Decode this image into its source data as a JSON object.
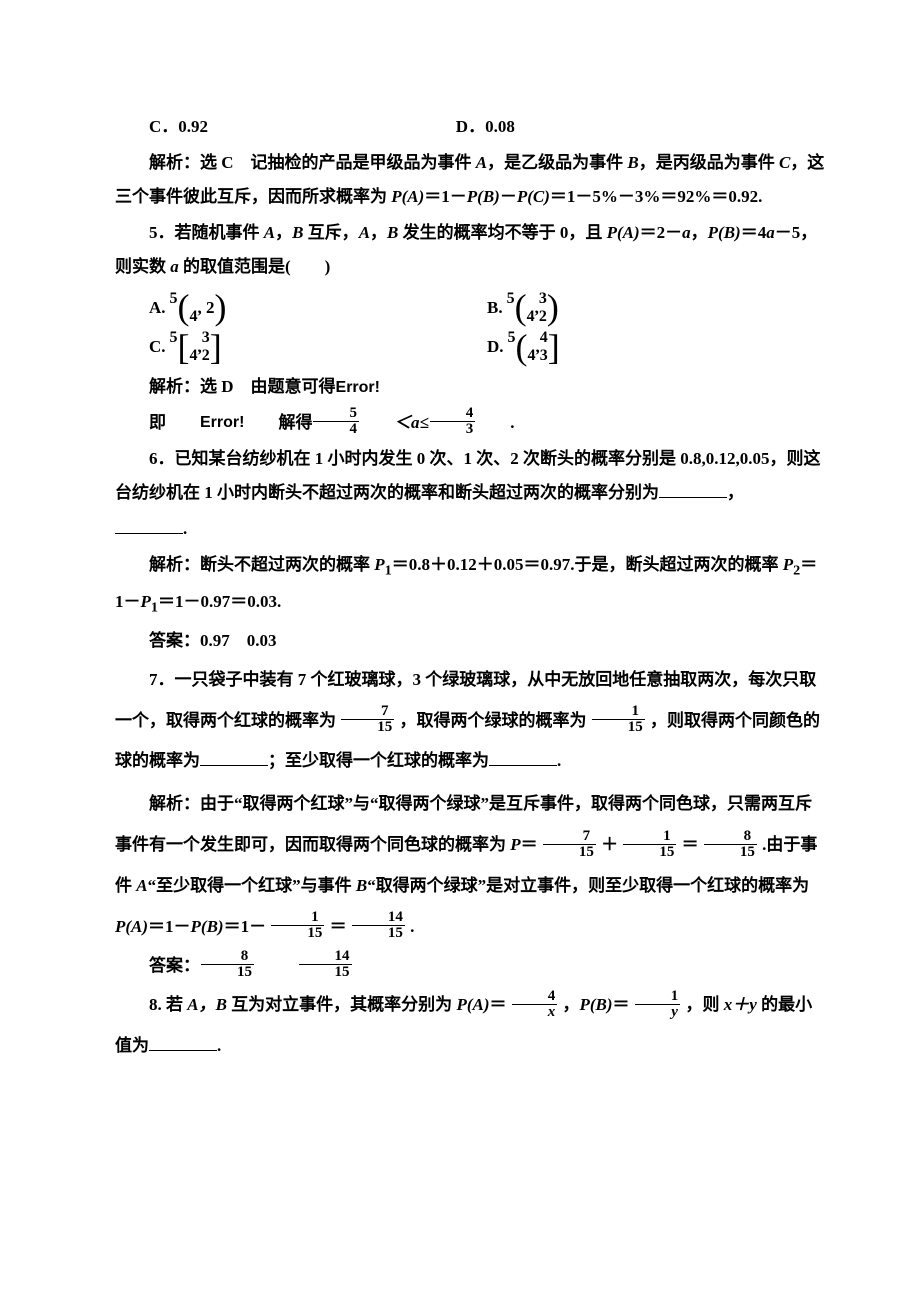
{
  "colors": {
    "text": "#000000",
    "background": "#ffffff"
  },
  "typography": {
    "base_fontsize": 17,
    "line_height": 2.0,
    "font_family": "SimSun"
  },
  "opt_c": "C．0.92",
  "opt_d": "D．0.08",
  "sol4_a": "解析：选 C　记抽检的产品是甲级品为事件 ",
  "sol4_b": "，是乙级品为事件 ",
  "sol4_c": "，是丙级品为事件 ",
  "sol4_d": "，这三个事件彼此互斥，因而所求概率为 ",
  "sol4_e": "＝1－",
  "sol4_f": "－",
  "sol4_g": "＝1－5%－3%＝92%＝0.92.",
  "q5_a": "5．若随机事件 ",
  "q5_b": "，",
  "q5_c": " 互斥，",
  "q5_d": " 发生的概率均不等于 0，且 ",
  "q5_e": "＝2－",
  "q5_f": "＝4",
  "q5_g": "－5，则实数 ",
  "q5_h": " 的取值范围是(　　)",
  "q5opt": {
    "A": {
      "tl": "5",
      "bl": "4",
      "tr": "",
      "br": "",
      "after": ", 2",
      "lbr": "(",
      "rbr": ")"
    },
    "B": {
      "tl": "5",
      "bl": "4",
      "tr": "3",
      "br": "2",
      "after": ", ",
      "lbr": "(",
      "rbr": ")"
    },
    "C": {
      "tl": "5",
      "bl": "4",
      "tr": "3",
      "br": "2",
      "after": ", ",
      "lbr": "[",
      "rbr": "]"
    },
    "D": {
      "tl": "5",
      "bl": "4",
      "tr": "4",
      "br": "3",
      "after": ", ",
      "lbr": "(",
      "rbr": "]"
    }
  },
  "sol5_a": "解析：选 D　由题意可得",
  "sol5_err": "Error!",
  "sol5_b": "即",
  "sol5_c": "解得",
  "sol5_frac1_n": "5",
  "sol5_frac1_d": "4",
  "sol5_mid": "＜a≤",
  "sol5_frac2_n": "4",
  "sol5_frac2_d": "3",
  "sol5_end": ".",
  "q6_a": "6．已知某台纺纱机在 1 小时内发生 0 次、1 次、2 次断头的概率分别是 0.8,0.12,0.05，则这台纺纱机在 1 小时内断头不超过两次的概率和断头超过两次的概率分别为",
  "q6_b": "，",
  "q6_c": ".",
  "sol6_a": "解析：断头不超过两次的概率 ",
  "sol6_b": "＝0.8＋0.12＋0.05＝0.97.于是，断头超过两次的概率 ",
  "sol6_c": "＝1－",
  "sol6_d": "＝1－0.97＝0.03.",
  "ans6": "答案：0.97　0.03",
  "q7_a": "7．一只袋子中装有 7 个红玻璃球，3 个绿玻璃球，从中无放回地任意抽取两次，每次只取一个，取得两个红球的概率为",
  "q7_b": "，取得两个绿球的概率为",
  "q7_c": "，则取得两个同颜色的球的概率为",
  "q7_d": "；至少取得一个红球的概率为",
  "q7_e": ".",
  "q7_f1n": "7",
  "q7_f1d": "15",
  "q7_f2n": "1",
  "q7_f2d": "15",
  "sol7_a": "解析：由于“取得两个红球”与“取得两个绿球”是互斥事件，取得两个同色球，只需两互斥事件有一个发生即可，因而取得两个同色球的概率为 ",
  "sol7_b": "＝",
  "sol7_c": "＋",
  "sol7_d": "＝",
  "sol7_e": ".由于事件 ",
  "sol7_f": "“至少取得一个红球”与事件 ",
  "sol7_g": "“取得两个绿球”是对立事件，则至少取得一个红球的概率为 ",
  "sol7_h": "＝1－",
  "sol7_i": "＝1－",
  "sol7_j": "＝",
  "sol7_k": ".",
  "s7_f1n": "7",
  "s7_f1d": "15",
  "s7_f2n": "1",
  "s7_f2d": "15",
  "s7_f3n": "8",
  "s7_f3d": "15",
  "s7_f4n": "1",
  "s7_f4d": "15",
  "s7_f5n": "14",
  "s7_f5d": "15",
  "ans7_a": "答案：",
  "a7_f1n": "8",
  "a7_f1d": "15",
  "a7_f2n": "14",
  "a7_f2d": "15",
  "q8_a": "8. 若 ",
  "q8_b": " 互为对立事件，其概率分别为 ",
  "q8_c": "＝",
  "q8_d": "，",
  "q8_e": "＝",
  "q8_f": "，则 ",
  "q8_g": " 的最小值为",
  "q8_h": ".",
  "q8_f1n": "4",
  "q8_f1d": "x",
  "q8_f2n": "1",
  "q8_f2d": "y",
  "sym": {
    "A": "A",
    "B": "B",
    "C": "C",
    "P": "P",
    "a": "a",
    "P1": "P",
    "sub1": "1",
    "P2": "P",
    "sub2": "2",
    "PA": "P(A)",
    "PB": "P(B)",
    "PC": "P(C)",
    "xy": "x＋y",
    "AB": "A，B"
  }
}
